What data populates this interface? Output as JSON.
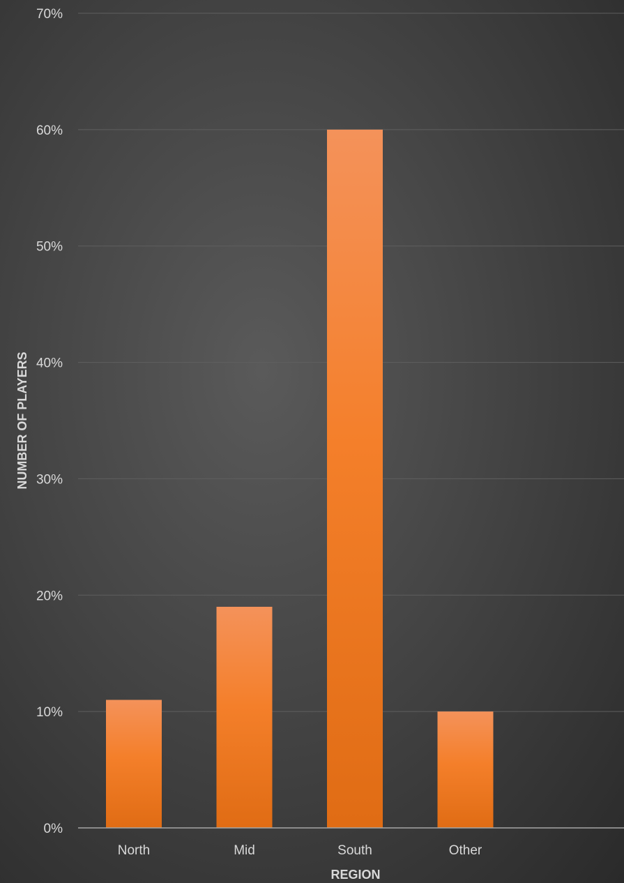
{
  "chart_data": {
    "type": "bar",
    "categories": [
      "North",
      "Mid",
      "South",
      "Other"
    ],
    "values": [
      11,
      19,
      60,
      10
    ],
    "value_format": "percent",
    "title": "",
    "xlabel": "REGION",
    "ylabel": "NUMBER OF PLAYERS",
    "ylim": [
      0,
      70
    ],
    "yticks": [
      "0%",
      "10%",
      "20%",
      "30%",
      "40%",
      "50%",
      "60%",
      "70%"
    ],
    "grid": true,
    "legend": "none",
    "colors": {
      "bar_top": "#f4925a",
      "bar_mid": "#f47f2a",
      "bar_bottom": "#e06c14",
      "text": "#d9d9d9"
    }
  }
}
